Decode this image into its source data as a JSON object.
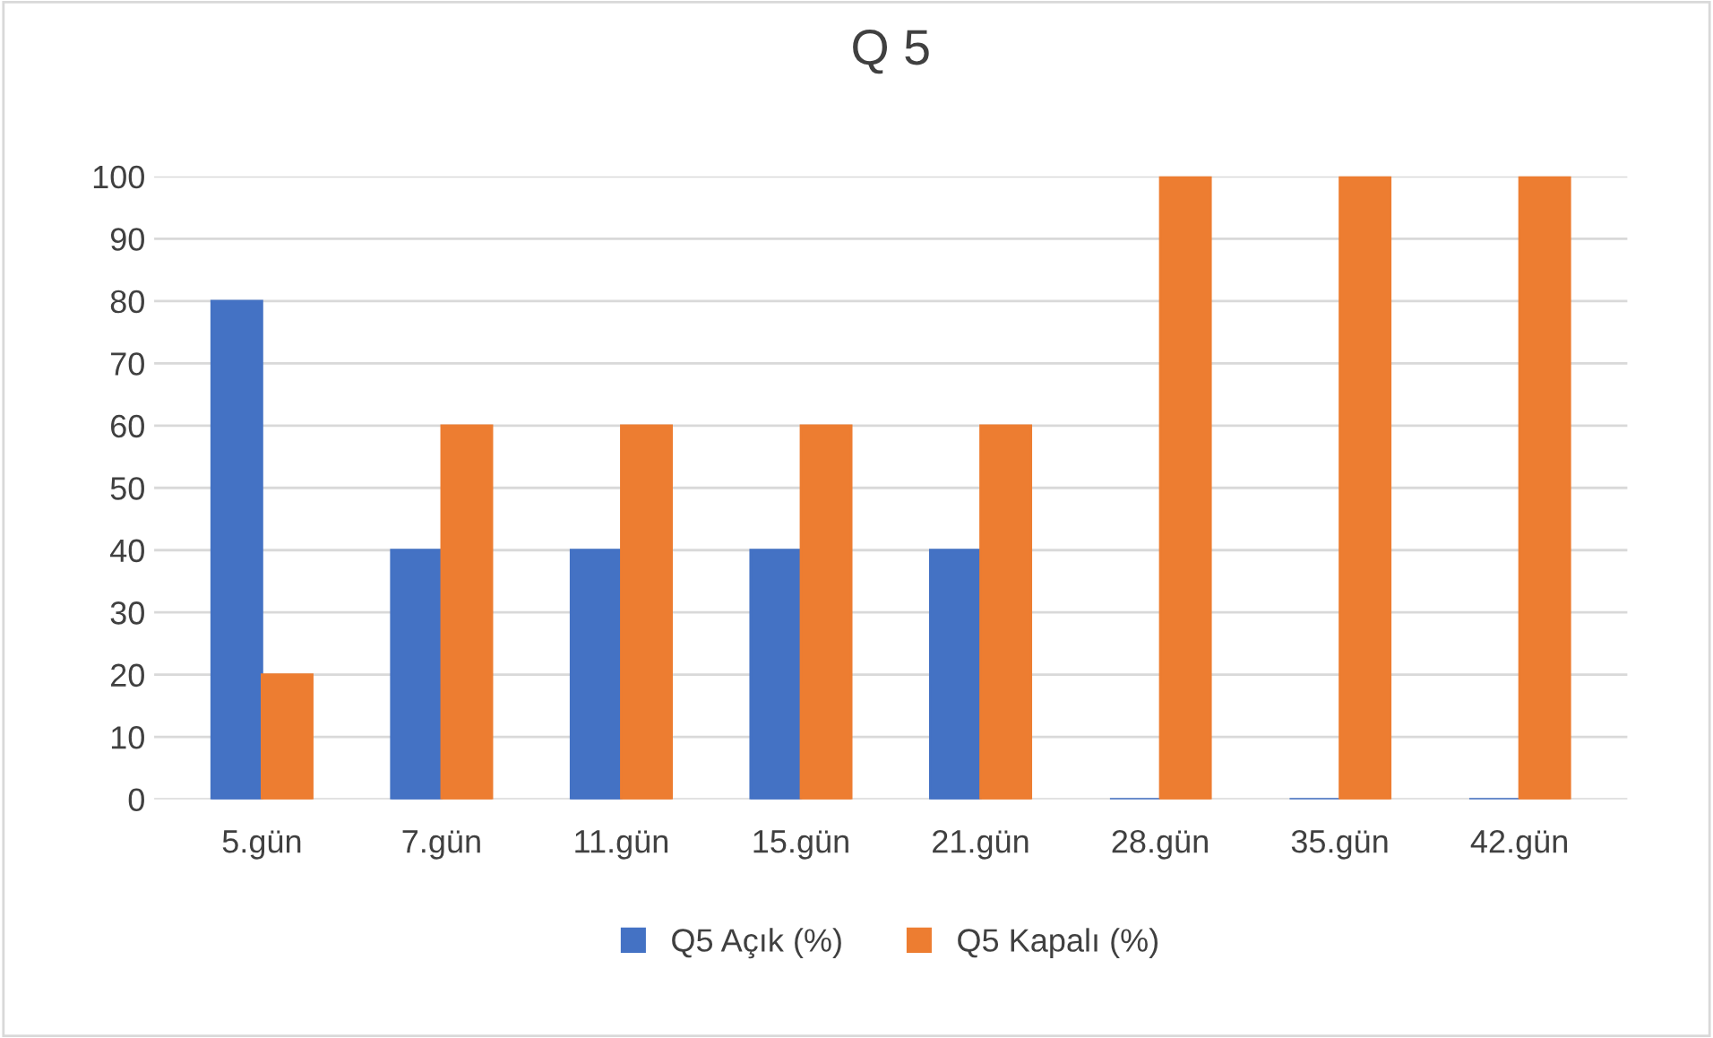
{
  "chart_data": {
    "type": "bar",
    "title": "Q 5",
    "categories": [
      "5.gün",
      "7.gün",
      "11.gün",
      "15.gün",
      "21.gün",
      "28.gün",
      "35.gün",
      "42.gün"
    ],
    "series": [
      {
        "name": "Q5 Açık (%)",
        "color": "#4472c4",
        "values": [
          80,
          40,
          40,
          40,
          40,
          0,
          0,
          0
        ]
      },
      {
        "name": "Q5 Kapalı (%)",
        "color": "#ed7d31",
        "values": [
          20,
          60,
          60,
          60,
          60,
          100,
          100,
          100
        ]
      }
    ],
    "ylim": [
      0,
      100
    ],
    "yticks": [
      0,
      10,
      20,
      30,
      40,
      50,
      60,
      70,
      80,
      90,
      100
    ],
    "grid": "y",
    "legend": "bottom"
  }
}
